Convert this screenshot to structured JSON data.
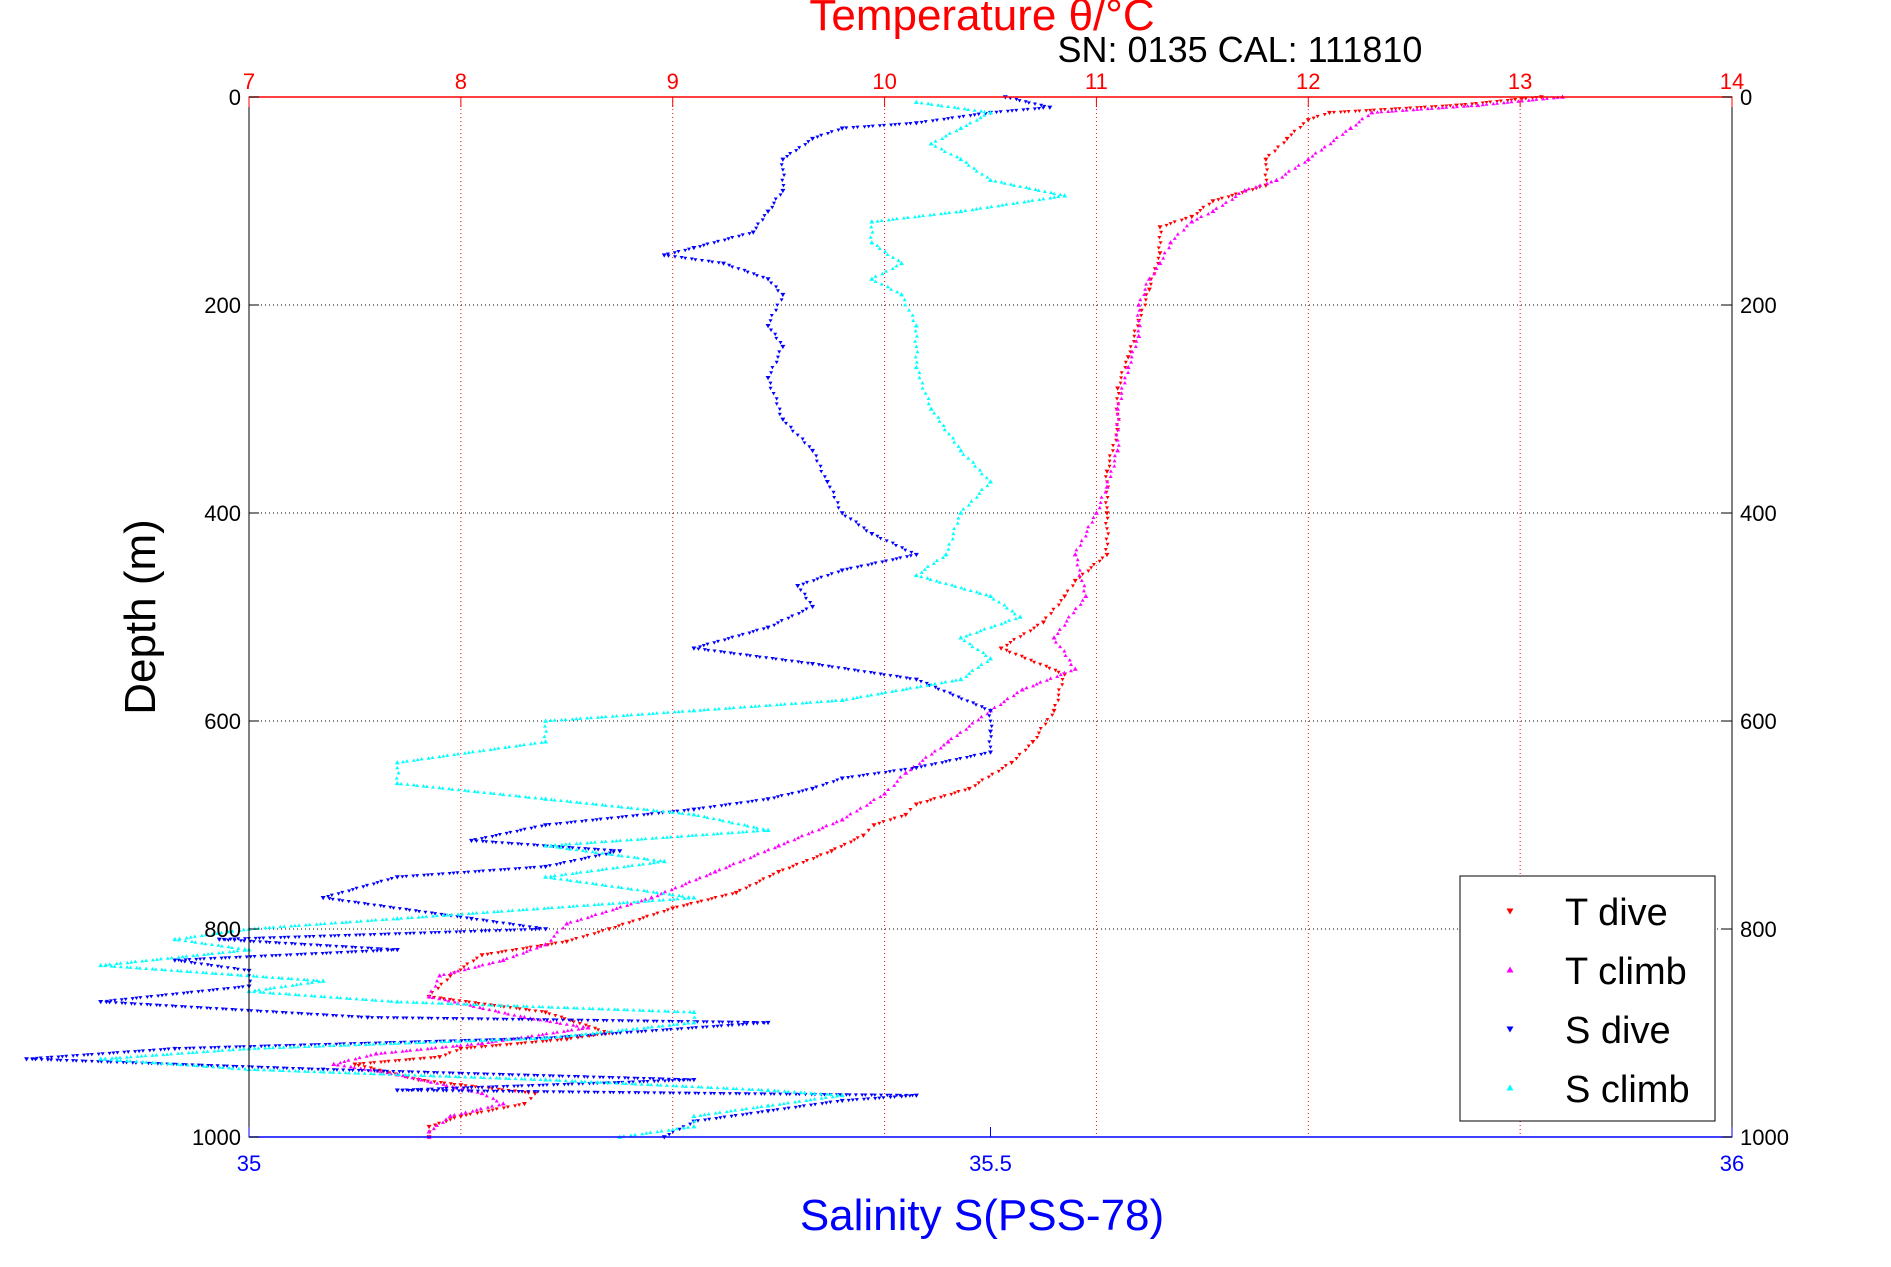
{
  "chart_data": {
    "type": "scatter",
    "title": "Temperature θ/°C",
    "subtitle": "SN: 0135  CAL: 111810",
    "xlabel": "Salinity S(PSS-78)",
    "ylabel": "Depth (m)",
    "top_xlabel": "Temperature θ/°C",
    "salinity_axis": {
      "lim": [
        35,
        36
      ],
      "ticks": [
        35,
        35.5,
        36
      ],
      "tick_labels": [
        "35",
        "35.5",
        "36"
      ],
      "color": "#0000ff"
    },
    "temperature_axis": {
      "lim": [
        7,
        14
      ],
      "ticks": [
        7,
        8,
        9,
        10,
        11,
        12,
        13,
        14
      ],
      "tick_labels": [
        "7",
        "8",
        "9",
        "10",
        "11",
        "12",
        "13",
        "14"
      ],
      "color": "#ff0000"
    },
    "depth_axis": {
      "lim": [
        0,
        1000
      ],
      "reversed": true,
      "ticks": [
        0,
        200,
        400,
        600,
        800,
        1000
      ],
      "tick_labels": [
        "0",
        "200",
        "400",
        "600",
        "800",
        "1000"
      ]
    },
    "grid": true,
    "legend_position": "bottom-right",
    "series": [
      {
        "name": "T dive",
        "axis": "temperature",
        "color": "#ff0000",
        "marker": "triangle-down",
        "points": [
          [
            13.1,
            0
          ],
          [
            12.7,
            8
          ],
          [
            12.1,
            15
          ],
          [
            12.0,
            22
          ],
          [
            11.9,
            40
          ],
          [
            11.8,
            60
          ],
          [
            11.8,
            85
          ],
          [
            11.55,
            100
          ],
          [
            11.45,
            115
          ],
          [
            11.3,
            125
          ],
          [
            11.3,
            150
          ],
          [
            11.25,
            185
          ],
          [
            11.2,
            215
          ],
          [
            11.15,
            250
          ],
          [
            11.1,
            280
          ],
          [
            11.1,
            320
          ],
          [
            11.05,
            360
          ],
          [
            11.05,
            400
          ],
          [
            11.05,
            440
          ],
          [
            10.9,
            465
          ],
          [
            10.85,
            480
          ],
          [
            10.75,
            505
          ],
          [
            10.55,
            530
          ],
          [
            10.85,
            555
          ],
          [
            10.8,
            590
          ],
          [
            10.7,
            620
          ],
          [
            10.6,
            640
          ],
          [
            10.4,
            665
          ],
          [
            10.15,
            680
          ],
          [
            10.1,
            690
          ],
          [
            9.95,
            700
          ],
          [
            9.9,
            710
          ],
          [
            9.75,
            725
          ],
          [
            9.5,
            745
          ],
          [
            9.3,
            765
          ],
          [
            9.0,
            780
          ],
          [
            8.7,
            800
          ],
          [
            8.5,
            812
          ],
          [
            8.1,
            825
          ],
          [
            7.95,
            845
          ],
          [
            7.85,
            865
          ],
          [
            8.4,
            880
          ],
          [
            8.7,
            900
          ],
          [
            8.5,
            906
          ],
          [
            8.0,
            915
          ],
          [
            7.9,
            923
          ],
          [
            7.5,
            930
          ],
          [
            7.8,
            945
          ],
          [
            8.0,
            950
          ],
          [
            8.35,
            958
          ],
          [
            8.3,
            968
          ],
          [
            8.0,
            980
          ],
          [
            7.85,
            990
          ],
          [
            7.85,
            1000
          ]
        ]
      },
      {
        "name": "T climb",
        "axis": "temperature",
        "color": "#ff00ff",
        "marker": "triangle-up",
        "points": [
          [
            13.2,
            0
          ],
          [
            12.8,
            8
          ],
          [
            12.3,
            15
          ],
          [
            12.2,
            30
          ],
          [
            12.0,
            60
          ],
          [
            11.85,
            80
          ],
          [
            11.7,
            90
          ],
          [
            11.55,
            110
          ],
          [
            11.45,
            120
          ],
          [
            11.35,
            140
          ],
          [
            11.3,
            160
          ],
          [
            11.25,
            175
          ],
          [
            11.2,
            200
          ],
          [
            11.2,
            230
          ],
          [
            11.15,
            260
          ],
          [
            11.1,
            300
          ],
          [
            11.1,
            340
          ],
          [
            11.05,
            375
          ],
          [
            11.0,
            400
          ],
          [
            10.9,
            440
          ],
          [
            10.95,
            480
          ],
          [
            10.8,
            520
          ],
          [
            10.9,
            550
          ],
          [
            10.65,
            570
          ],
          [
            10.5,
            590
          ],
          [
            10.3,
            620
          ],
          [
            10.1,
            650
          ],
          [
            10.0,
            670
          ],
          [
            9.8,
            695
          ],
          [
            9.5,
            720
          ],
          [
            9.2,
            745
          ],
          [
            8.9,
            770
          ],
          [
            8.5,
            795
          ],
          [
            8.4,
            815
          ],
          [
            8.2,
            830
          ],
          [
            7.9,
            845
          ],
          [
            7.85,
            865
          ],
          [
            8.3,
            885
          ],
          [
            8.6,
            895
          ],
          [
            8.1,
            910
          ],
          [
            7.6,
            920
          ],
          [
            7.4,
            930
          ],
          [
            7.7,
            940
          ],
          [
            8.1,
            958
          ],
          [
            8.2,
            968
          ],
          [
            7.95,
            980
          ],
          [
            7.85,
            995
          ],
          [
            7.85,
            1000
          ]
        ]
      },
      {
        "name": "S dive",
        "axis": "salinity",
        "color": "#0000ff",
        "marker": "triangle-down",
        "points": [
          [
            35.51,
            0
          ],
          [
            35.54,
            10
          ],
          [
            35.5,
            15
          ],
          [
            35.45,
            25
          ],
          [
            35.4,
            30
          ],
          [
            35.38,
            40
          ],
          [
            35.36,
            60
          ],
          [
            35.36,
            90
          ],
          [
            35.35,
            110
          ],
          [
            35.34,
            130
          ],
          [
            35.3,
            145
          ],
          [
            35.28,
            152
          ],
          [
            35.32,
            160
          ],
          [
            35.35,
            175
          ],
          [
            35.36,
            190
          ],
          [
            35.35,
            220
          ],
          [
            35.36,
            240
          ],
          [
            35.35,
            270
          ],
          [
            35.36,
            310
          ],
          [
            35.38,
            340
          ],
          [
            35.39,
            370
          ],
          [
            35.4,
            400
          ],
          [
            35.42,
            420
          ],
          [
            35.45,
            440
          ],
          [
            35.4,
            455
          ],
          [
            35.37,
            470
          ],
          [
            35.38,
            490
          ],
          [
            35.35,
            510
          ],
          [
            35.3,
            530
          ],
          [
            35.38,
            545
          ],
          [
            35.45,
            560
          ],
          [
            35.5,
            590
          ],
          [
            35.5,
            610
          ],
          [
            35.5,
            630
          ],
          [
            35.45,
            645
          ],
          [
            35.4,
            655
          ],
          [
            35.38,
            665
          ],
          [
            35.35,
            675
          ],
          [
            35.3,
            685
          ],
          [
            35.2,
            700
          ],
          [
            35.15,
            715
          ],
          [
            35.25,
            725
          ],
          [
            35.2,
            740
          ],
          [
            35.1,
            750
          ],
          [
            35.05,
            770
          ],
          [
            35.15,
            790
          ],
          [
            35.2,
            800
          ],
          [
            34.98,
            810
          ],
          [
            35.1,
            820
          ],
          [
            34.95,
            830
          ],
          [
            35.0,
            840
          ],
          [
            35.0,
            855
          ],
          [
            34.9,
            870
          ],
          [
            35.08,
            885
          ],
          [
            35.35,
            890
          ],
          [
            35.2,
            905
          ],
          [
            34.95,
            915
          ],
          [
            34.85,
            925
          ],
          [
            35.05,
            935
          ],
          [
            35.3,
            945
          ],
          [
            35.1,
            955
          ],
          [
            35.45,
            960
          ],
          [
            35.4,
            965
          ],
          [
            35.35,
            975
          ],
          [
            35.3,
            985
          ],
          [
            35.28,
            1000
          ]
        ]
      },
      {
        "name": "S climb",
        "axis": "salinity",
        "color": "#00ffff",
        "marker": "triangle-up",
        "points": [
          [
            35.45,
            5
          ],
          [
            35.5,
            15
          ],
          [
            35.48,
            30
          ],
          [
            35.46,
            45
          ],
          [
            35.48,
            60
          ],
          [
            35.5,
            80
          ],
          [
            35.55,
            95
          ],
          [
            35.48,
            110
          ],
          [
            35.42,
            120
          ],
          [
            35.42,
            140
          ],
          [
            35.44,
            160
          ],
          [
            35.42,
            175
          ],
          [
            35.44,
            190
          ],
          [
            35.45,
            220
          ],
          [
            35.45,
            260
          ],
          [
            35.46,
            300
          ],
          [
            35.48,
            340
          ],
          [
            35.5,
            370
          ],
          [
            35.48,
            400
          ],
          [
            35.47,
            440
          ],
          [
            35.45,
            460
          ],
          [
            35.5,
            480
          ],
          [
            35.52,
            500
          ],
          [
            35.48,
            520
          ],
          [
            35.5,
            540
          ],
          [
            35.48,
            560
          ],
          [
            35.4,
            580
          ],
          [
            35.3,
            590
          ],
          [
            35.2,
            600
          ],
          [
            35.2,
            620
          ],
          [
            35.1,
            640
          ],
          [
            35.1,
            660
          ],
          [
            35.2,
            675
          ],
          [
            35.3,
            690
          ],
          [
            35.35,
            705
          ],
          [
            35.2,
            720
          ],
          [
            35.28,
            735
          ],
          [
            35.2,
            750
          ],
          [
            35.3,
            770
          ],
          [
            35.1,
            790
          ],
          [
            35.0,
            800
          ],
          [
            34.95,
            810
          ],
          [
            35.0,
            820
          ],
          [
            34.9,
            835
          ],
          [
            35.05,
            850
          ],
          [
            35.0,
            860
          ],
          [
            35.1,
            870
          ],
          [
            35.3,
            880
          ],
          [
            35.3,
            890
          ],
          [
            35.2,
            905
          ],
          [
            35.0,
            915
          ],
          [
            34.9,
            925
          ],
          [
            35.0,
            935
          ],
          [
            35.2,
            945
          ],
          [
            35.35,
            955
          ],
          [
            35.4,
            960
          ],
          [
            35.35,
            970
          ],
          [
            35.3,
            980
          ],
          [
            35.3,
            990
          ],
          [
            35.25,
            1000
          ]
        ]
      }
    ]
  }
}
